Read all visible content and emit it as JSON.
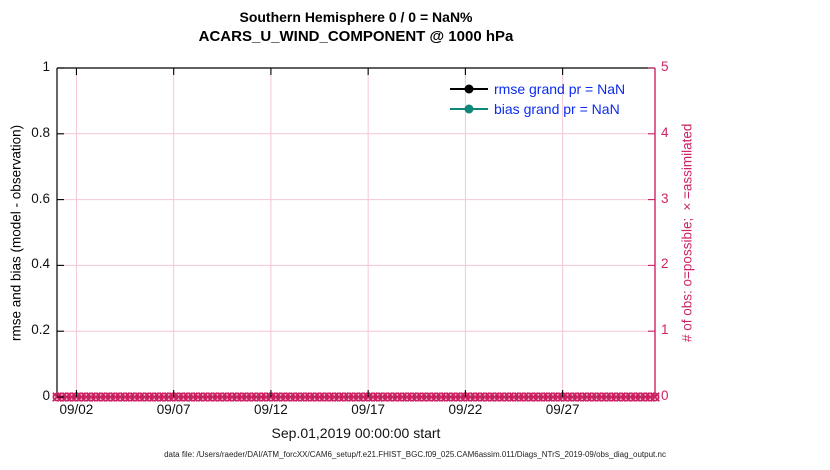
{
  "colors": {
    "crimson": "#CD2365",
    "grid_pink": "#F4C7D5",
    "axis_black": "#000000",
    "legend_text_blue": "#0C2BF0",
    "teal": "#0F8779"
  },
  "legend": {
    "items": [
      {
        "label": "rmse grand pr = NaN",
        "color": "#000000"
      },
      {
        "label": "bias grand pr = NaN",
        "color": "#0F8779"
      }
    ]
  },
  "footer": "data file: /Users/raeder/DAI/ATM_forcXX/CAM6_setup/f.e21.FHIST_BGC.f09_025.CAM6assim.011/Diags_NTrS_2019-09/obs_diag_output.nc",
  "chart_data": {
    "type": "line",
    "title": "Southern Hemisphere 0 / 0 = NaN%",
    "subtitle": "ACARS_U_WIND_COMPONENT @ 1000 hPa",
    "xlabel": "Sep.01,2019 00:00:00 start",
    "ylabel_left": "rmse and bias (model - observation)",
    "ylabel_right": "# of obs: o=possible; ×=assimilated",
    "ylim_left": [
      0,
      1
    ],
    "ylim_right": [
      0,
      5
    ],
    "x_domain_days": [
      1,
      31.75
    ],
    "x_tick_days": [
      2,
      7,
      12,
      17,
      22,
      27
    ],
    "x_tick_labels": [
      "09/02",
      "09/07",
      "09/12",
      "09/17",
      "09/22",
      "09/27"
    ],
    "left_tick_values": [
      0,
      0.2,
      0.4,
      0.6,
      0.8,
      1
    ],
    "left_tick_labels": [
      "0",
      "0.2",
      "0.4",
      "0.6",
      "0.8",
      "1"
    ],
    "right_tick_values": [
      0,
      1,
      2,
      3,
      4,
      5
    ],
    "right_tick_labels": [
      "0",
      "1",
      "2",
      "3",
      "4",
      "5"
    ],
    "grid": true,
    "legend_position": "top-right-inside",
    "series": [
      {
        "name": "rmse grand pr",
        "value": "NaN",
        "points_plotted": 0
      },
      {
        "name": "bias grand pr",
        "value": "NaN",
        "points_plotted": 0
      }
    ],
    "obs_markers": {
      "description": "obs counts on right axis: o=possible, x=assimilated; every value is 0 so a dense crimson band of overlapping o and x markers sits on y=0 across the whole month",
      "n_points": 124,
      "possible_value": 0,
      "assimilated_value": 0
    }
  }
}
